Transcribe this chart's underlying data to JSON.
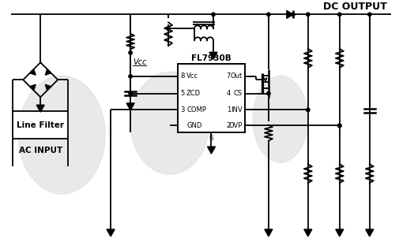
{
  "title": "DC OUTPUT",
  "ic_label": "FL7930B",
  "ac_label": "AC INPUT",
  "vcc_label": "Vcc",
  "line_filter_label": "Line Filter",
  "bg_color": "#ffffff",
  "line_color": "#000000",
  "gray_blob_color": "#e0e0e0",
  "pin_labels_left": [
    [
      "8",
      "Vcc"
    ],
    [
      "5",
      "ZCD"
    ],
    [
      "3",
      "COMP"
    ],
    [
      "",
      "GND"
    ]
  ],
  "pin_labels_right": [
    [
      "Out",
      "7"
    ],
    [
      "CS",
      "4"
    ],
    [
      "INV",
      "1"
    ],
    [
      "OVP",
      "2"
    ]
  ],
  "pin_bottom": "6"
}
